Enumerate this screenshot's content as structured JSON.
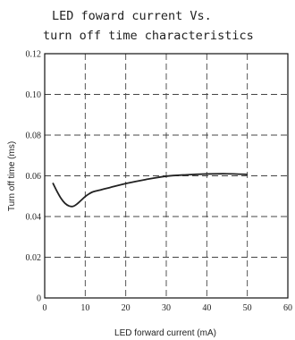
{
  "chart_data": {
    "type": "line",
    "title_lines": [
      "LED foward current Vs.",
      "turn off time characteristics"
    ],
    "xlabel": "LED forward current (mA)",
    "ylabel": "Turn off time (ms)",
    "xlim": [
      0,
      60
    ],
    "ylim": [
      0,
      0.12
    ],
    "x_ticks": [
      "0",
      "10",
      "20",
      "30",
      "40",
      "50",
      "60"
    ],
    "y_ticks": [
      "0",
      "0.02",
      "0.04",
      "0.06",
      "0.08",
      "0.10",
      "0.12"
    ],
    "grid": true,
    "series": [
      {
        "color": "#222222",
        "x": [
          2,
          3,
          4,
          5,
          6,
          7,
          8,
          9,
          10,
          11,
          12,
          14,
          16,
          20,
          25,
          30,
          35,
          40,
          45,
          50
        ],
        "y": [
          0.0565,
          0.0525,
          0.049,
          0.0465,
          0.0452,
          0.045,
          0.0462,
          0.048,
          0.0498,
          0.0512,
          0.0522,
          0.0532,
          0.0542,
          0.0562,
          0.0582,
          0.0598,
          0.0605,
          0.0609,
          0.061,
          0.0607
        ]
      }
    ]
  }
}
